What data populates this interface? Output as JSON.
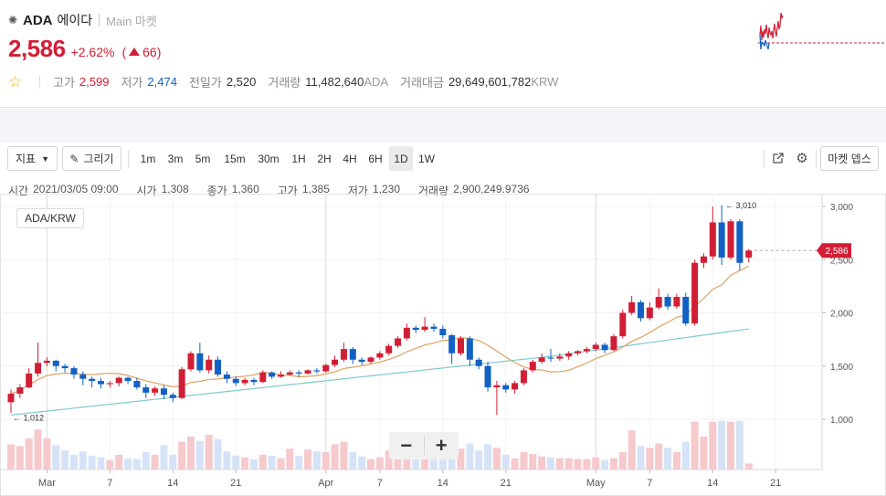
{
  "header": {
    "coin_symbol": "ADA",
    "coin_name_kr": "에이다",
    "market_label": "Main 마켓",
    "price": "2,586",
    "change_pct": "+2.62%",
    "change_abs": "66",
    "stats": {
      "high_label": "고가",
      "high_value": "2,599",
      "low_label": "저가",
      "low_value": "2,474",
      "prev_label": "전일가",
      "prev_value": "2,520",
      "volume_label": "거래량",
      "volume_value": "11,482,640",
      "volume_unit": "ADA",
      "amount_label": "거래대금",
      "amount_value": "29,649,601,782",
      "amount_unit": "KRW"
    }
  },
  "toolbar": {
    "indicator_label": "지표",
    "draw_label": "그리기",
    "timeframes": [
      "1m",
      "3m",
      "5m",
      "15m",
      "30m",
      "1H",
      "2H",
      "4H",
      "6H",
      "1D",
      "1W"
    ],
    "active_timeframe": "1D",
    "market_depth_label": "마켓 뎁스"
  },
  "ohlc_info": {
    "time_label": "시간",
    "time_value": "2021/03/05 09:00",
    "open_label": "시가",
    "open_value": "1,308",
    "close_label": "종가",
    "close_value": "1,360",
    "high_label": "고가",
    "high_value": "1,385",
    "low_label": "저가",
    "low_value": "1,230",
    "vol_label": "거래량",
    "vol_value": "2,900,249.9736"
  },
  "pair_label": "ADA/KRW",
  "colors": {
    "up": "#d21e35",
    "down": "#1261c4",
    "ma_short": "#e0a060",
    "ma_long": "#7ec8d0",
    "vol_up": "#f6c9cc",
    "vol_down": "#d6e3f7"
  },
  "chart_data": {
    "type": "candlestick",
    "series_pair": "ADA/KRW",
    "interval": "1D",
    "y_ticks": [
      "3,000",
      "2,500",
      "2,000",
      "1,500",
      "1,000"
    ],
    "ylim": [
      600,
      3100
    ],
    "x_tick_labels": [
      "Mar",
      "7",
      "14",
      "21",
      "Apr",
      "7",
      "14",
      "21",
      "May",
      "7",
      "14",
      "21"
    ],
    "current_price_label": "2,586",
    "max_label": "3,010",
    "min_label": "1,012",
    "candles": [
      [
        1160,
        1240,
        1060,
        1280
      ],
      [
        1240,
        1300,
        1200,
        1330
      ],
      [
        1300,
        1430,
        1290,
        1480
      ],
      [
        1430,
        1530,
        1400,
        1720
      ],
      [
        1530,
        1550,
        1500,
        1580
      ],
      [
        1550,
        1500,
        1450,
        1560
      ],
      [
        1500,
        1480,
        1440,
        1520
      ],
      [
        1480,
        1420,
        1380,
        1500
      ],
      [
        1420,
        1380,
        1320,
        1450
      ],
      [
        1380,
        1360,
        1300,
        1400
      ],
      [
        1360,
        1330,
        1290,
        1390
      ],
      [
        1330,
        1340,
        1300,
        1360
      ],
      [
        1340,
        1390,
        1310,
        1400
      ],
      [
        1390,
        1360,
        1330,
        1400
      ],
      [
        1360,
        1300,
        1280,
        1390
      ],
      [
        1300,
        1250,
        1200,
        1330
      ],
      [
        1250,
        1290,
        1220,
        1310
      ],
      [
        1290,
        1230,
        1190,
        1320
      ],
      [
        1230,
        1200,
        1160,
        1250
      ],
      [
        1200,
        1470,
        1190,
        1490
      ],
      [
        1470,
        1620,
        1450,
        1640
      ],
      [
        1620,
        1460,
        1440,
        1720
      ],
      [
        1460,
        1560,
        1430,
        1600
      ],
      [
        1560,
        1420,
        1400,
        1590
      ],
      [
        1420,
        1380,
        1340,
        1450
      ],
      [
        1380,
        1340,
        1310,
        1400
      ],
      [
        1340,
        1370,
        1320,
        1390
      ],
      [
        1370,
        1350,
        1320,
        1390
      ],
      [
        1350,
        1440,
        1340,
        1460
      ],
      [
        1440,
        1400,
        1380,
        1450
      ],
      [
        1400,
        1420,
        1390,
        1450
      ],
      [
        1420,
        1440,
        1410,
        1460
      ],
      [
        1440,
        1430,
        1400,
        1460
      ],
      [
        1430,
        1460,
        1420,
        1470
      ],
      [
        1460,
        1450,
        1430,
        1480
      ],
      [
        1450,
        1510,
        1440,
        1520
      ],
      [
        1510,
        1560,
        1490,
        1600
      ],
      [
        1560,
        1660,
        1540,
        1720
      ],
      [
        1660,
        1560,
        1520,
        1680
      ],
      [
        1560,
        1540,
        1510,
        1580
      ],
      [
        1540,
        1580,
        1520,
        1590
      ],
      [
        1580,
        1620,
        1560,
        1640
      ],
      [
        1620,
        1690,
        1600,
        1710
      ],
      [
        1690,
        1760,
        1670,
        1780
      ],
      [
        1760,
        1860,
        1740,
        1900
      ],
      [
        1860,
        1840,
        1810,
        1880
      ],
      [
        1840,
        1870,
        1820,
        1960
      ],
      [
        1870,
        1850,
        1820,
        1900
      ],
      [
        1850,
        1790,
        1760,
        1880
      ],
      [
        1790,
        1620,
        1520,
        1800
      ],
      [
        1620,
        1760,
        1600,
        1780
      ],
      [
        1760,
        1560,
        1500,
        1780
      ],
      [
        1560,
        1500,
        1470,
        1580
      ],
      [
        1500,
        1300,
        1260,
        1540
      ],
      [
        1300,
        1320,
        1040,
        1360
      ],
      [
        1320,
        1280,
        1250,
        1340
      ],
      [
        1280,
        1340,
        1240,
        1360
      ],
      [
        1340,
        1460,
        1320,
        1480
      ],
      [
        1460,
        1540,
        1440,
        1560
      ],
      [
        1540,
        1580,
        1520,
        1620
      ],
      [
        1580,
        1570,
        1540,
        1660
      ],
      [
        1570,
        1590,
        1550,
        1620
      ],
      [
        1590,
        1620,
        1560,
        1640
      ],
      [
        1620,
        1640,
        1600,
        1650
      ],
      [
        1640,
        1660,
        1620,
        1680
      ],
      [
        1660,
        1700,
        1640,
        1720
      ],
      [
        1700,
        1650,
        1620,
        1720
      ],
      [
        1650,
        1780,
        1640,
        1800
      ],
      [
        1780,
        2000,
        1760,
        2030
      ],
      [
        2000,
        2100,
        1980,
        2160
      ],
      [
        2100,
        1950,
        1920,
        2120
      ],
      [
        1950,
        2050,
        1930,
        2100
      ],
      [
        2050,
        2150,
        2030,
        2230
      ],
      [
        2150,
        2060,
        2030,
        2180
      ],
      [
        2060,
        2150,
        2040,
        2180
      ],
      [
        2150,
        1900,
        1880,
        2190
      ],
      [
        1900,
        2470,
        1880,
        2500
      ],
      [
        2470,
        2530,
        2420,
        2560
      ],
      [
        2530,
        2850,
        2500,
        3000
      ],
      [
        2850,
        2520,
        2450,
        3010
      ],
      [
        2520,
        2860,
        2500,
        2880
      ],
      [
        2860,
        2470,
        2400,
        2880
      ],
      [
        2520,
        2586,
        2474,
        2599
      ]
    ],
    "volumes": [
      0.29,
      0.27,
      0.36,
      0.46,
      0.36,
      0.28,
      0.22,
      0.17,
      0.21,
      0.16,
      0.14,
      0.11,
      0.17,
      0.13,
      0.12,
      0.2,
      0.17,
      0.28,
      0.17,
      0.32,
      0.38,
      0.33,
      0.4,
      0.35,
      0.21,
      0.16,
      0.14,
      0.12,
      0.17,
      0.16,
      0.13,
      0.24,
      0.16,
      0.23,
      0.21,
      0.2,
      0.29,
      0.32,
      0.2,
      0.15,
      0.12,
      0.14,
      0.22,
      0.2,
      0.3,
      0.24,
      0.19,
      0.17,
      0.2,
      0.25,
      0.24,
      0.3,
      0.22,
      0.29,
      0.25,
      0.17,
      0.13,
      0.2,
      0.18,
      0.15,
      0.14,
      0.13,
      0.13,
      0.12,
      0.12,
      0.14,
      0.11,
      0.13,
      0.2,
      0.45,
      0.27,
      0.25,
      0.3,
      0.25,
      0.2,
      0.32,
      0.55,
      0.38,
      0.55,
      0.56,
      0.55,
      0.56,
      0.07
    ]
  }
}
